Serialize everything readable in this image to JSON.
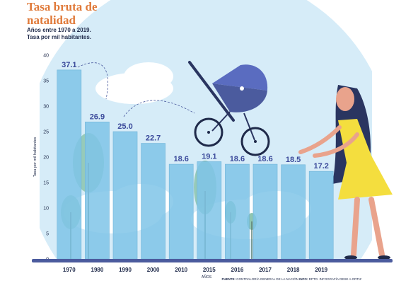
{
  "header": {
    "title": "Tasa bruta de natalidad",
    "subtitle_line1": "Años entre 1970 a 2019.",
    "subtitle_line2": "Tasa por mil habitantes."
  },
  "footer": {
    "source_label": "FUENTE:",
    "source_text": "CONTRALORÍA GENERAL DE LA NACIÓN",
    "info_label": "INFO:",
    "info_text": "DPTO. INFOGRAFÍA DESE A.ORTIZ"
  },
  "chart_data": {
    "type": "bar",
    "categories": [
      "1970",
      "1980",
      "1990",
      "2000",
      "2010",
      "2015",
      "2016",
      "2017",
      "2018",
      "2019"
    ],
    "values": [
      37.1,
      26.9,
      25.0,
      22.7,
      18.6,
      19.1,
      18.6,
      18.6,
      18.5,
      17.2
    ],
    "value_labels": [
      "37.1",
      "26.9",
      "25.0",
      "22.7",
      "18.6",
      "19.1",
      "18.6",
      "18.6",
      "18.5",
      "17.2"
    ],
    "xlabel": "AÑOS",
    "ylabel": "Tasa por mil habitantes",
    "ylim": [
      0,
      40
    ],
    "yticks": [
      0,
      5,
      10,
      15,
      20,
      25,
      30,
      35,
      40
    ],
    "colors": {
      "bar": "#7fc4e8",
      "bar_edge": "#6fb3d8",
      "value_label": "#3b4a9b",
      "circle_bg": "#d6ecf8",
      "baseline": "#4b5b9e"
    }
  }
}
